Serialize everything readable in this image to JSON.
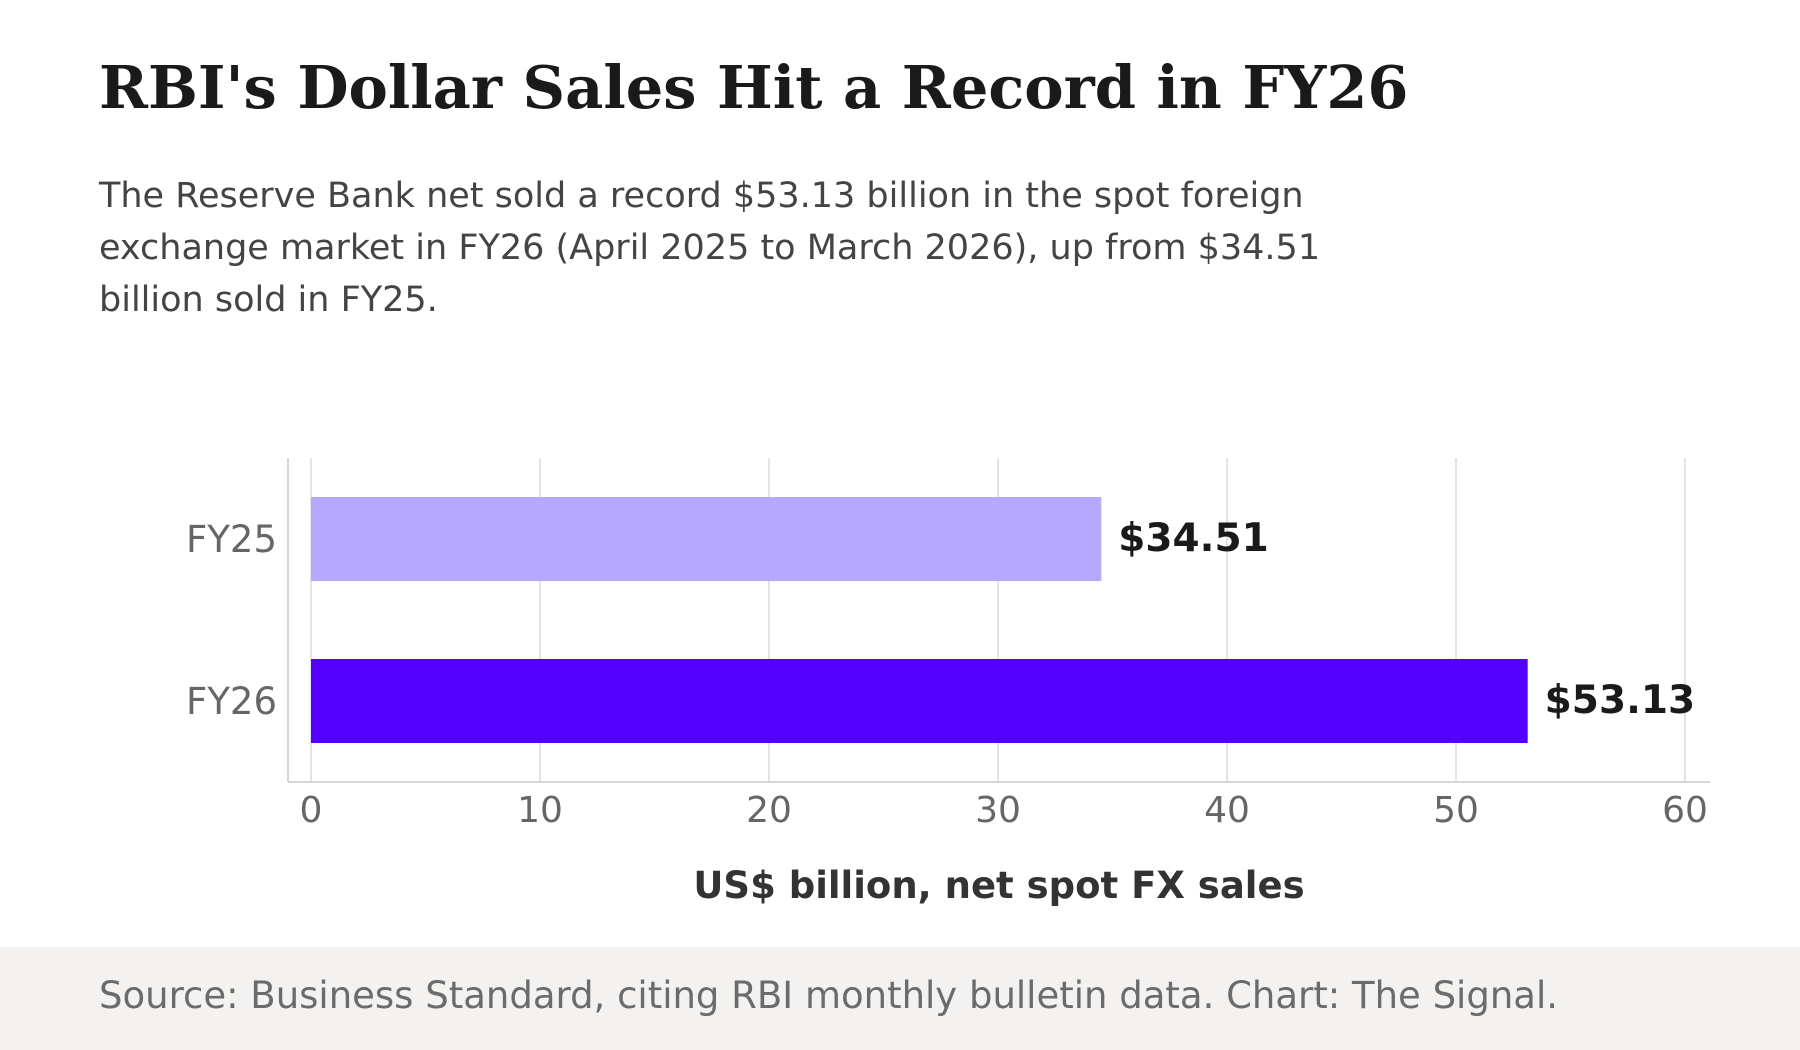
{
  "title": "RBI's Dollar Sales Hit a Record in FY26",
  "subtitle": "The Reserve Bank net sold a record $53.13 billion in the spot foreign exchange market in FY26 (April 2025 to March 2026), up from $34.51 billion sold in FY25.",
  "source": "Source: Business Standard, citing RBI monthly bulletin data. Chart: The Signal.",
  "chart_data": {
    "type": "bar",
    "orientation": "horizontal",
    "categories": [
      "FY25",
      "FY26"
    ],
    "values": [
      34.51,
      53.13
    ],
    "value_labels": [
      "$34.51",
      "$53.13"
    ],
    "colors": [
      "#b6a8ff",
      "#5200ff"
    ],
    "xlabel": "US$ billion, net spot FX sales",
    "xlim": [
      0,
      60
    ],
    "xticks": [
      0,
      10,
      20,
      30,
      40,
      50,
      60
    ],
    "grid": "vertical"
  }
}
